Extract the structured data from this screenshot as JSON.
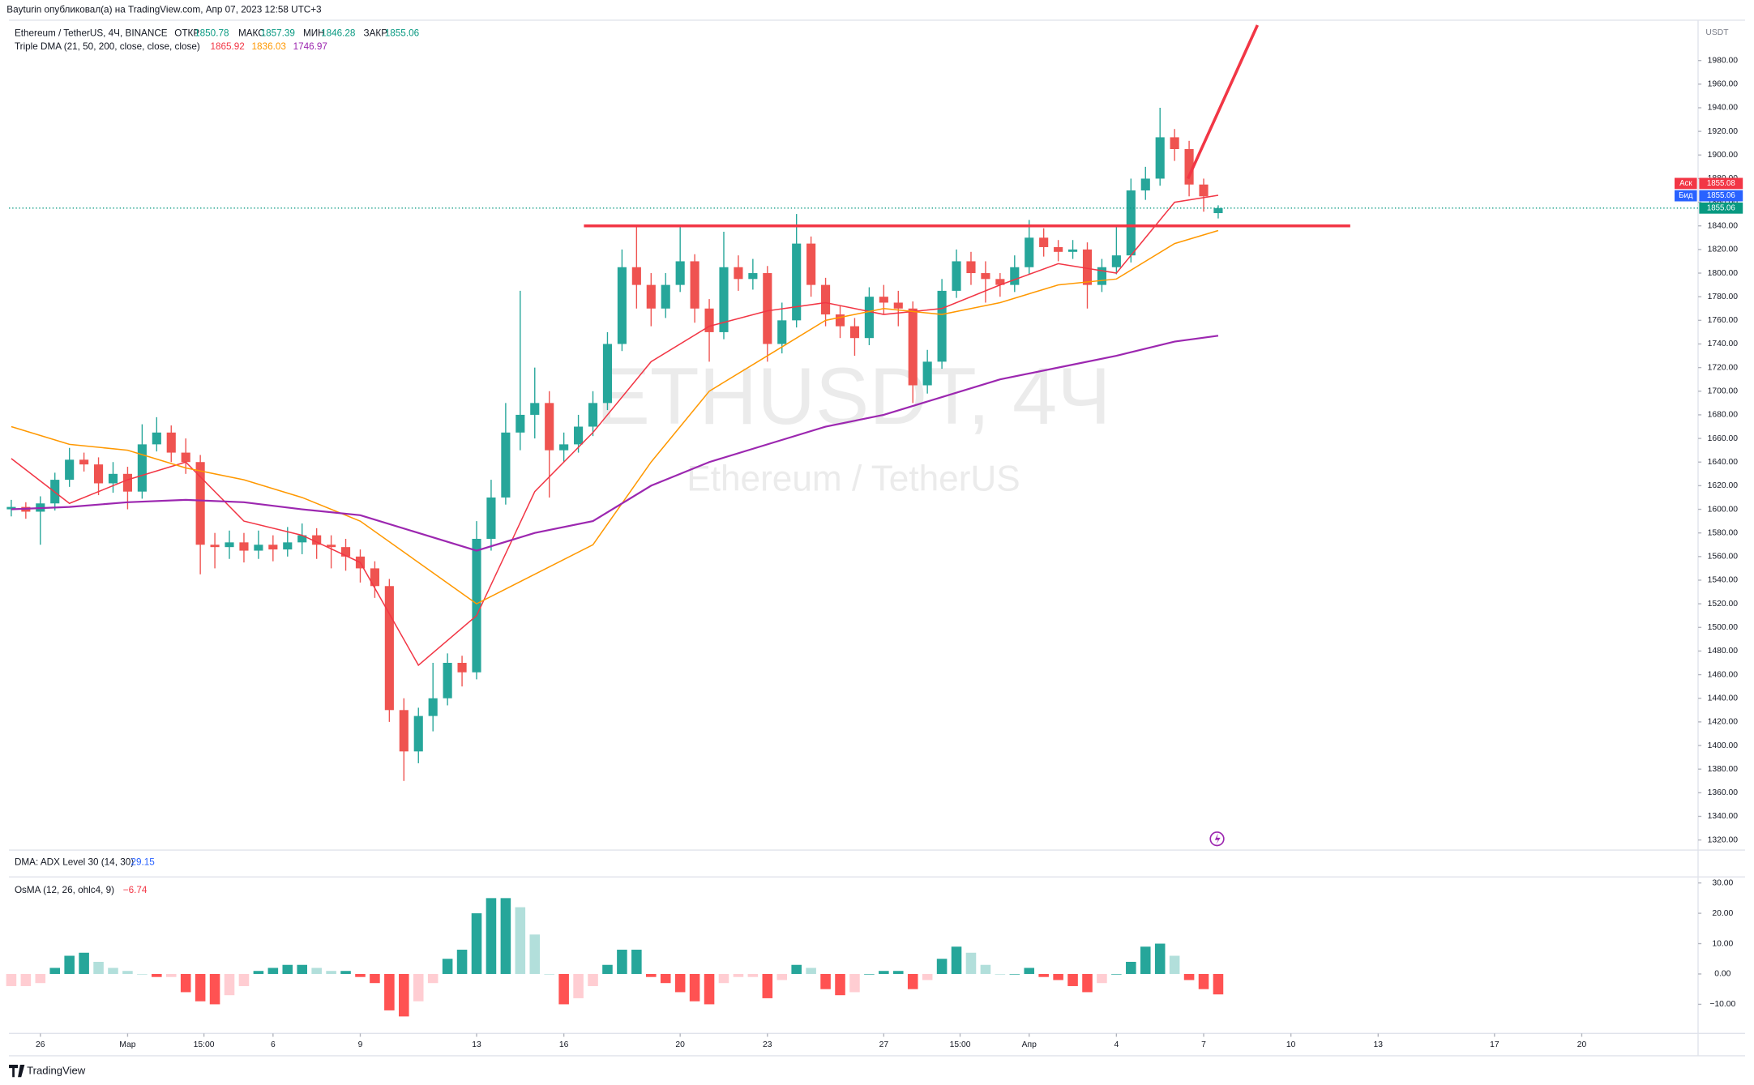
{
  "header": {
    "published": "Bayturin опубликовал(а) на TradingView.com, Апр 07, 2023 12:58 UTC+3",
    "logo": "TradingView"
  },
  "adx_pane": {
    "title": "DMA: ADX Level 30 (14, 30)",
    "value": 29.15
  },
  "chart_data": [
    {
      "type": "candlestick",
      "title": "Ethereum / TetherUS, 4Ч, BINANCE",
      "ohlc_labels": [
        "ОТКР",
        "МАКС",
        "МИН",
        "ЗАКР"
      ],
      "watermark": [
        "ETHUSDT, 4Ч",
        "Ethereum / TetherUS"
      ],
      "y_label": "USDT",
      "up_color": "#26a69a",
      "down_color": "#ef5350",
      "x": [
        -1,
        -0.5,
        0,
        0.5,
        1,
        1.5,
        2,
        2.5,
        3,
        3.5,
        4,
        4.5,
        5,
        5.5,
        6,
        6.5,
        7,
        7.5,
        8,
        8.5,
        9,
        9.5,
        10,
        10.5,
        11,
        11.5,
        12,
        12.5,
        13,
        13.5,
        14,
        14.5,
        15,
        15.5,
        16,
        16.5,
        17,
        17.5,
        18,
        18.5,
        19,
        19.5,
        20,
        20.5,
        21,
        21.5,
        22,
        22.5,
        23,
        23.5,
        24,
        24.5,
        25,
        25.5,
        26,
        26.5,
        27,
        27.5,
        28,
        28.5,
        29,
        29.5,
        30,
        30.5,
        31,
        31.5,
        32,
        32.5,
        33,
        33.5,
        34,
        34.5,
        35,
        35.5,
        36,
        36.5,
        37,
        37.5,
        38,
        38.5,
        39,
        39.5,
        40,
        40.5
      ],
      "open": [
        1600,
        1602,
        1598,
        1605,
        1625,
        1642,
        1638,
        1622,
        1630,
        1615,
        1655,
        1665,
        1648,
        1640,
        1570,
        1568,
        1572,
        1565,
        1570,
        1566,
        1572,
        1578,
        1570,
        1568,
        1560,
        1550,
        1535,
        1430,
        1395,
        1425,
        1440,
        1470,
        1462,
        1575,
        1610,
        1665,
        1680,
        1690,
        1650,
        1655,
        1670,
        1690,
        1740,
        1805,
        1790,
        1770,
        1790,
        1810,
        1770,
        1750,
        1805,
        1795,
        1800,
        1740,
        1760,
        1825,
        1790,
        1765,
        1755,
        1745,
        1780,
        1775,
        1770,
        1705,
        1725,
        1785,
        1810,
        1800,
        1795,
        1790,
        1805,
        1830,
        1822,
        1818,
        1820,
        1790,
        1805,
        1815,
        1870,
        1880,
        1915,
        1905,
        1875,
        1850.78
      ],
      "high": [
        1608,
        1606,
        1611,
        1631,
        1652,
        1648,
        1644,
        1640,
        1636,
        1672,
        1678,
        1671,
        1660,
        1646,
        1580,
        1582,
        1580,
        1582,
        1578,
        1585,
        1588,
        1584,
        1578,
        1575,
        1566,
        1556,
        1541,
        1440,
        1432,
        1470,
        1478,
        1476,
        1590,
        1625,
        1690,
        1785,
        1720,
        1700,
        1665,
        1680,
        1700,
        1750,
        1820,
        1840,
        1800,
        1800,
        1840,
        1816,
        1778,
        1835,
        1815,
        1812,
        1806,
        1775,
        1850,
        1831,
        1796,
        1772,
        1762,
        1788,
        1790,
        1785,
        1776,
        1735,
        1795,
        1820,
        1818,
        1810,
        1800,
        1815,
        1845,
        1838,
        1828,
        1828,
        1826,
        1812,
        1840,
        1880,
        1890,
        1940,
        1922,
        1912,
        1880,
        1857.39
      ],
      "low": [
        1594,
        1592,
        1570,
        1599,
        1619,
        1632,
        1612,
        1614,
        1600,
        1609,
        1649,
        1640,
        1630,
        1545,
        1550,
        1558,
        1555,
        1558,
        1556,
        1560,
        1562,
        1558,
        1550,
        1548,
        1538,
        1525,
        1420,
        1370,
        1385,
        1412,
        1434,
        1450,
        1456,
        1565,
        1604,
        1650,
        1660,
        1610,
        1640,
        1648,
        1662,
        1684,
        1734,
        1770,
        1755,
        1762,
        1784,
        1758,
        1725,
        1744,
        1785,
        1786,
        1725,
        1732,
        1754,
        1780,
        1755,
        1745,
        1730,
        1739,
        1765,
        1755,
        1690,
        1698,
        1719,
        1779,
        1790,
        1775,
        1780,
        1784,
        1799,
        1814,
        1810,
        1812,
        1770,
        1784,
        1799,
        1809,
        1862,
        1874,
        1895,
        1865,
        1852,
        1846.28
      ],
      "close": [
        1602,
        1598,
        1605,
        1625,
        1642,
        1638,
        1622,
        1630,
        1615,
        1655,
        1665,
        1648,
        1640,
        1570,
        1568,
        1572,
        1565,
        1570,
        1566,
        1572,
        1578,
        1570,
        1568,
        1560,
        1550,
        1535,
        1430,
        1395,
        1425,
        1440,
        1470,
        1462,
        1575,
        1610,
        1665,
        1680,
        1690,
        1650,
        1655,
        1670,
        1690,
        1740,
        1805,
        1790,
        1770,
        1790,
        1810,
        1770,
        1750,
        1805,
        1795,
        1800,
        1740,
        1760,
        1825,
        1790,
        1765,
        1755,
        1745,
        1780,
        1775,
        1770,
        1705,
        1725,
        1785,
        1810,
        1800,
        1795,
        1790,
        1805,
        1830,
        1822,
        1818,
        1820,
        1790,
        1805,
        1815,
        1870,
        1880,
        1915,
        1905,
        1875,
        1865,
        1855.06
      ],
      "indicator": "Triple DMA (21, 50, 200, close, close, close)",
      "series": [
        {
          "color": "#f23645",
          "x": [
            -1,
            1,
            3,
            5,
            7,
            9,
            11,
            13,
            15,
            17,
            19,
            21,
            23,
            25,
            27,
            29,
            31,
            33,
            35,
            37,
            39,
            40.5
          ],
          "values": [
            1643,
            1605,
            1625,
            1640,
            1590,
            1578,
            1555,
            1468,
            1510,
            1615,
            1665,
            1725,
            1755,
            1768,
            1775,
            1765,
            1770,
            1790,
            1808,
            1800,
            1860,
            1865.92
          ]
        },
        {
          "color": "#ff9800",
          "x": [
            -1,
            1,
            3,
            5,
            7,
            9,
            11,
            13,
            15,
            17,
            19,
            21,
            23,
            25,
            27,
            29,
            31,
            33,
            35,
            37,
            39,
            40.5
          ],
          "values": [
            1670,
            1655,
            1650,
            1635,
            1625,
            1610,
            1590,
            1555,
            1520,
            1545,
            1570,
            1640,
            1700,
            1730,
            1760,
            1770,
            1765,
            1775,
            1790,
            1795,
            1825,
            1836.03
          ]
        },
        {
          "color": "#9c27b0",
          "x": [
            -1,
            1,
            3,
            5,
            7,
            9,
            11,
            13,
            15,
            17,
            19,
            21,
            23,
            25,
            27,
            29,
            31,
            33,
            35,
            37,
            39,
            40.5
          ],
          "values": [
            1600,
            1602,
            1606,
            1608,
            1606,
            1600,
            1595,
            1580,
            1565,
            1580,
            1590,
            1620,
            1640,
            1655,
            1670,
            1680,
            1695,
            1710,
            1720,
            1730,
            1742,
            1746.97
          ]
        }
      ],
      "lines": [
        {
          "color": "#f23645",
          "x": [
            18.69,
            45.04
          ],
          "y": [
            1840,
            1840
          ]
        },
        {
          "color": "#f23645",
          "x": [
            39.46,
            41.85
          ],
          "y": [
            1880,
            2010
          ]
        }
      ],
      "quotes": [
        {
          "label": "Аск",
          "value": 1855.08,
          "color": "#f23645"
        },
        {
          "label": "Бид",
          "value": 1855.06,
          "color": "#2962ff"
        },
        {
          "value": 1855.06,
          "color": "#089981"
        }
      ],
      "xlim": [
        -1.08,
        57
      ],
      "xticks": [
        {
          "value": 0,
          "label": "26"
        },
        {
          "value": 3,
          "label": "Мар"
        },
        {
          "value": 5.625,
          "label": "15:00"
        },
        {
          "value": 8,
          "label": "6"
        },
        {
          "value": 11,
          "label": "9"
        },
        {
          "value": 15,
          "label": "13"
        },
        {
          "value": 18,
          "label": "16"
        },
        {
          "value": 22,
          "label": "20"
        },
        {
          "value": 25,
          "label": "23"
        },
        {
          "value": 29,
          "label": "27"
        },
        {
          "value": 31.625,
          "label": "15:00"
        },
        {
          "value": 34,
          "label": "Апр"
        },
        {
          "value": 37,
          "label": "4"
        },
        {
          "value": 40,
          "label": "7"
        },
        {
          "value": 43,
          "label": "10"
        },
        {
          "value": 46,
          "label": "13"
        },
        {
          "value": 50,
          "label": "17"
        },
        {
          "value": 53,
          "label": "20"
        }
      ],
      "ylim": [
        1311.5,
        2012.2
      ],
      "yticks": [
        {
          "value": 1320,
          "label": "1320.00"
        },
        {
          "value": 1340,
          "label": "1340.00"
        },
        {
          "value": 1360,
          "label": "1360.00"
        },
        {
          "value": 1380,
          "label": "1380.00"
        },
        {
          "value": 1400,
          "label": "1400.00"
        },
        {
          "value": 1420,
          "label": "1420.00"
        },
        {
          "value": 1440,
          "label": "1440.00"
        },
        {
          "value": 1460,
          "label": "1460.00"
        },
        {
          "value": 1480,
          "label": "1480.00"
        },
        {
          "value": 1500,
          "label": "1500.00"
        },
        {
          "value": 1520,
          "label": "1520.00"
        },
        {
          "value": 1540,
          "label": "1540.00"
        },
        {
          "value": 1560,
          "label": "1560.00"
        },
        {
          "value": 1580,
          "label": "1580.00"
        },
        {
          "value": 1600,
          "label": "1600.00"
        },
        {
          "value": 1620,
          "label": "1620.00"
        },
        {
          "value": 1640,
          "label": "1640.00"
        },
        {
          "value": 1660,
          "label": "1660.00"
        },
        {
          "value": 1680,
          "label": "1680.00"
        },
        {
          "value": 1700,
          "label": "1700.00"
        },
        {
          "value": 1720,
          "label": "1720.00"
        },
        {
          "value": 1740,
          "label": "1740.00"
        },
        {
          "value": 1760,
          "label": "1760.00"
        },
        {
          "value": 1780,
          "label": "1780.00"
        },
        {
          "value": 1800,
          "label": "1800.00"
        },
        {
          "value": 1820,
          "label": "1820.00"
        },
        {
          "value": 1840,
          "label": "1840.00"
        },
        {
          "value": 1860,
          "label": "1860.00"
        },
        {
          "value": 1880,
          "label": "1880.00"
        },
        {
          "value": 1900,
          "label": "1900.00"
        },
        {
          "value": 1920,
          "label": "1920.00"
        },
        {
          "value": 1940,
          "label": "1940.00"
        },
        {
          "value": 1960,
          "label": "1960.00"
        },
        {
          "value": 1980,
          "label": "1980.00"
        }
      ]
    },
    {
      "type": "bar",
      "title": "OsMA (12, 26, ohlc4, 9)",
      "value_label": "−6.74",
      "colors": [
        "#26a69a",
        "#b2dfdb",
        "#ff5252",
        "#ffcdd2"
      ],
      "values": [
        -4,
        -4,
        -3,
        2,
        6,
        7,
        4,
        2,
        1,
        0,
        -1,
        -1,
        -6,
        -9,
        -10,
        -7,
        -4,
        1,
        2,
        3,
        3,
        2,
        1,
        1,
        -1,
        -3,
        -12,
        -14,
        -9,
        -3,
        5,
        8,
        20,
        25,
        25,
        22,
        13,
        0,
        -10,
        -8,
        -4,
        3,
        8,
        8,
        -1,
        -3,
        -6,
        -9,
        -10,
        -3,
        -1,
        -1,
        -8,
        -2,
        3,
        2,
        -5,
        -7,
        -6,
        0,
        1,
        1,
        -5,
        -2,
        5,
        9,
        7,
        3,
        0,
        0,
        2,
        -1,
        -2,
        -4,
        -6,
        -3,
        0,
        4,
        9,
        10,
        6,
        -2,
        -5,
        -6.74
      ],
      "ylim": [
        -19.6,
        32
      ],
      "yticks": [
        {
          "value": 30,
          "label": "30.00"
        },
        {
          "value": 20,
          "label": "20.00"
        },
        {
          "value": 10,
          "label": "10.00"
        },
        {
          "value": 0,
          "label": "0.00"
        },
        {
          "value": -10,
          "label": "−10.00"
        }
      ]
    }
  ]
}
